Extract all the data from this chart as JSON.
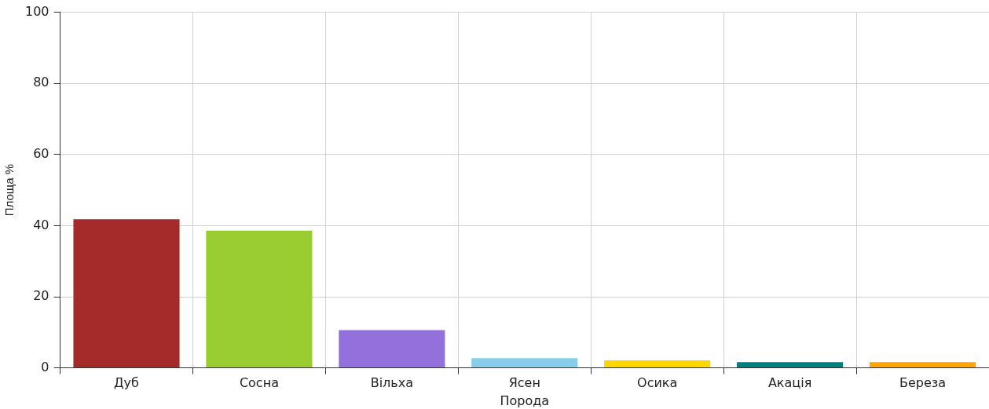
{
  "chart_data": {
    "type": "bar",
    "xlabel": "Порода",
    "ylabel": "Площа %",
    "categories": [
      "Дуб",
      "Сосна",
      "Вільха",
      "Ясен",
      "Осика",
      "Акація",
      "Береза"
    ],
    "values": [
      41.8,
      38.6,
      10.6,
      2.7,
      2.1,
      1.6,
      1.6
    ],
    "colors": [
      "#a52a2a",
      "#9acd32",
      "#9370db",
      "#87ceeb",
      "#ffd700",
      "#008080",
      "#ffa500"
    ],
    "ylim": [
      0,
      100
    ],
    "yticks": [
      0,
      20,
      40,
      60,
      80,
      100
    ],
    "grid": true,
    "legend": false
  }
}
